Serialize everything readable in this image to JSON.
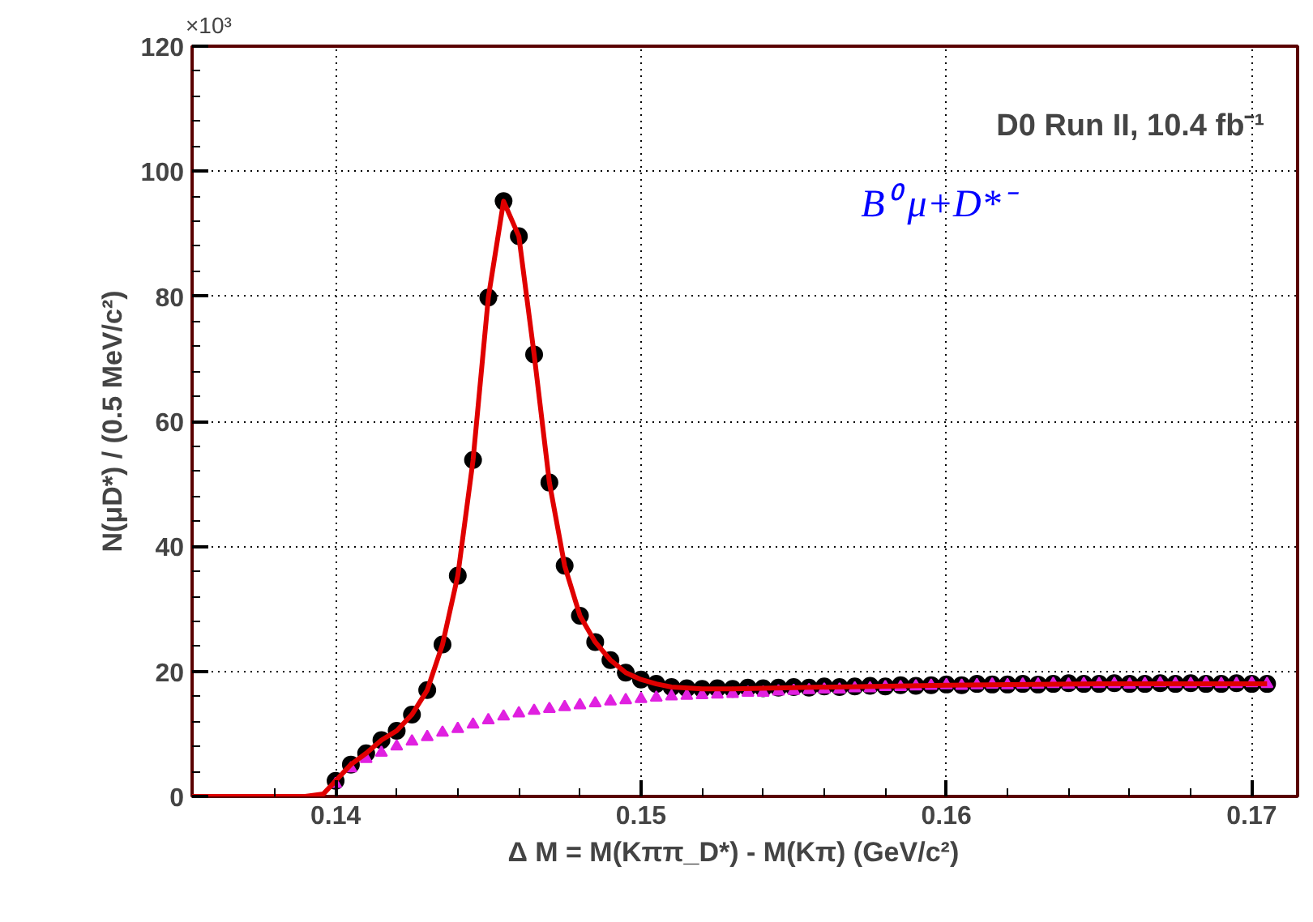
{
  "chart_data": {
    "type": "scatter",
    "xlabel": "Δ M = M(Kππ_D*) - M(Kπ)    (GeV/c²)",
    "ylabel": "N(μD*) / (0.5 MeV/c²)",
    "annotations": [
      "×10³",
      "D0 Run II, 10.4 fb⁻¹",
      "B⁰   μ+D*⁻"
    ],
    "xlim": [
      0.1353,
      0.1715
    ],
    "ylim": [
      0,
      120
    ],
    "xticks": [
      0.14,
      0.15,
      0.16,
      0.17
    ],
    "yticks": [
      0,
      20,
      40,
      60,
      80,
      100,
      120
    ],
    "grid": true,
    "series": [
      {
        "type": "line",
        "color": "#e00000",
        "line_style": "solid",
        "x": [
          0.1353,
          0.139,
          0.1396,
          0.14,
          0.1405,
          0.141,
          0.1415,
          0.142,
          0.1425,
          0.143,
          0.1435,
          0.144,
          0.1445,
          0.145,
          0.1455,
          0.146,
          0.1465,
          0.147,
          0.1475,
          0.148,
          0.1485,
          0.149,
          0.1495,
          0.15,
          0.1505,
          0.151,
          0.152,
          0.153,
          0.155,
          0.16,
          0.165,
          0.1705
        ],
        "values": [
          0,
          0,
          0.4,
          2.5,
          5.1,
          6.9,
          9.0,
          10.5,
          13.1,
          17.0,
          24.3,
          35.3,
          53.8,
          79.8,
          95.2,
          89.6,
          70.7,
          50.2,
          36.9,
          28.9,
          24.7,
          21.8,
          19.8,
          18.7,
          18.0,
          17.5,
          17.2,
          17.2,
          17.4,
          17.8,
          18.0,
          18.0
        ]
      },
      {
        "type": "scatter",
        "marker": "triangle",
        "color": "#e020e0",
        "x": [
          0.14,
          0.1405,
          0.141,
          0.1415,
          0.142,
          0.1425,
          0.143,
          0.1435,
          0.144,
          0.1445,
          0.145,
          0.1455,
          0.146,
          0.1465,
          0.147,
          0.1475,
          0.148,
          0.1485,
          0.149,
          0.1495,
          0.15,
          0.1505,
          0.151,
          0.1515,
          0.152,
          0.1525,
          0.153,
          0.1535,
          0.154,
          0.1545,
          0.155,
          0.1555,
          0.156,
          0.1565,
          0.157,
          0.1575,
          0.158,
          0.1585,
          0.159,
          0.1595,
          0.16,
          0.1605,
          0.161,
          0.1615,
          0.162,
          0.1625,
          0.163,
          0.1635,
          0.164,
          0.1645,
          0.165,
          0.1655,
          0.166,
          0.1665,
          0.167,
          0.1675,
          0.168,
          0.1685,
          0.169,
          0.1695,
          0.17,
          0.1705
        ],
        "values": [
          2.0,
          4.5,
          6.0,
          7.0,
          8.0,
          8.8,
          9.5,
          10.2,
          10.8,
          11.5,
          12.2,
          12.8,
          13.3,
          13.7,
          14.0,
          14.3,
          14.6,
          14.9,
          15.2,
          15.4,
          15.6,
          15.8,
          16.0,
          16.1,
          16.2,
          16.3,
          16.4,
          16.6,
          16.6,
          16.8,
          16.9,
          17.0,
          17.1,
          17.1,
          17.3,
          17.3,
          17.5,
          17.5,
          17.6,
          17.7,
          17.8,
          17.7,
          17.8,
          17.9,
          17.8,
          17.9,
          17.9,
          18.0,
          17.9,
          18.0,
          18.0,
          18.0,
          17.9,
          18.0,
          18.1,
          18.0,
          18.0,
          18.1,
          18.0,
          18.0,
          18.1,
          18.0
        ]
      },
      {
        "type": "scatter",
        "marker": "circle",
        "color": "#000000",
        "x": [
          0.14,
          0.1405,
          0.141,
          0.1415,
          0.142,
          0.1425,
          0.143,
          0.1435,
          0.144,
          0.1445,
          0.145,
          0.1455,
          0.146,
          0.1465,
          0.147,
          0.1475,
          0.148,
          0.1485,
          0.149,
          0.1495,
          0.15,
          0.1505,
          0.151,
          0.1515,
          0.152,
          0.1525,
          0.153,
          0.1535,
          0.154,
          0.1545,
          0.155,
          0.1555,
          0.156,
          0.1565,
          0.157,
          0.1575,
          0.158,
          0.1585,
          0.159,
          0.1595,
          0.16,
          0.1605,
          0.161,
          0.1615,
          0.162,
          0.1625,
          0.163,
          0.1635,
          0.164,
          0.1645,
          0.165,
          0.1655,
          0.166,
          0.1665,
          0.167,
          0.1675,
          0.168,
          0.1685,
          0.169,
          0.1695,
          0.17,
          0.1705
        ],
        "values": [
          2.5,
          5.1,
          6.9,
          9.0,
          10.5,
          13.1,
          17.0,
          24.3,
          35.3,
          53.8,
          79.8,
          95.2,
          89.6,
          70.7,
          50.2,
          36.9,
          28.9,
          24.7,
          21.8,
          19.8,
          18.7,
          18.0,
          17.5,
          17.3,
          17.2,
          17.3,
          17.2,
          17.4,
          17.3,
          17.4,
          17.5,
          17.4,
          17.6,
          17.5,
          17.6,
          17.7,
          17.6,
          17.8,
          17.7,
          17.8,
          17.9,
          17.8,
          18.0,
          17.9,
          17.9,
          18.0,
          17.9,
          18.0,
          18.1,
          18.0,
          18.0,
          18.1,
          18.0,
          18.0,
          18.1,
          18.0,
          18.1,
          18.0,
          18.0,
          18.1,
          18.0,
          18.0
        ]
      }
    ]
  }
}
